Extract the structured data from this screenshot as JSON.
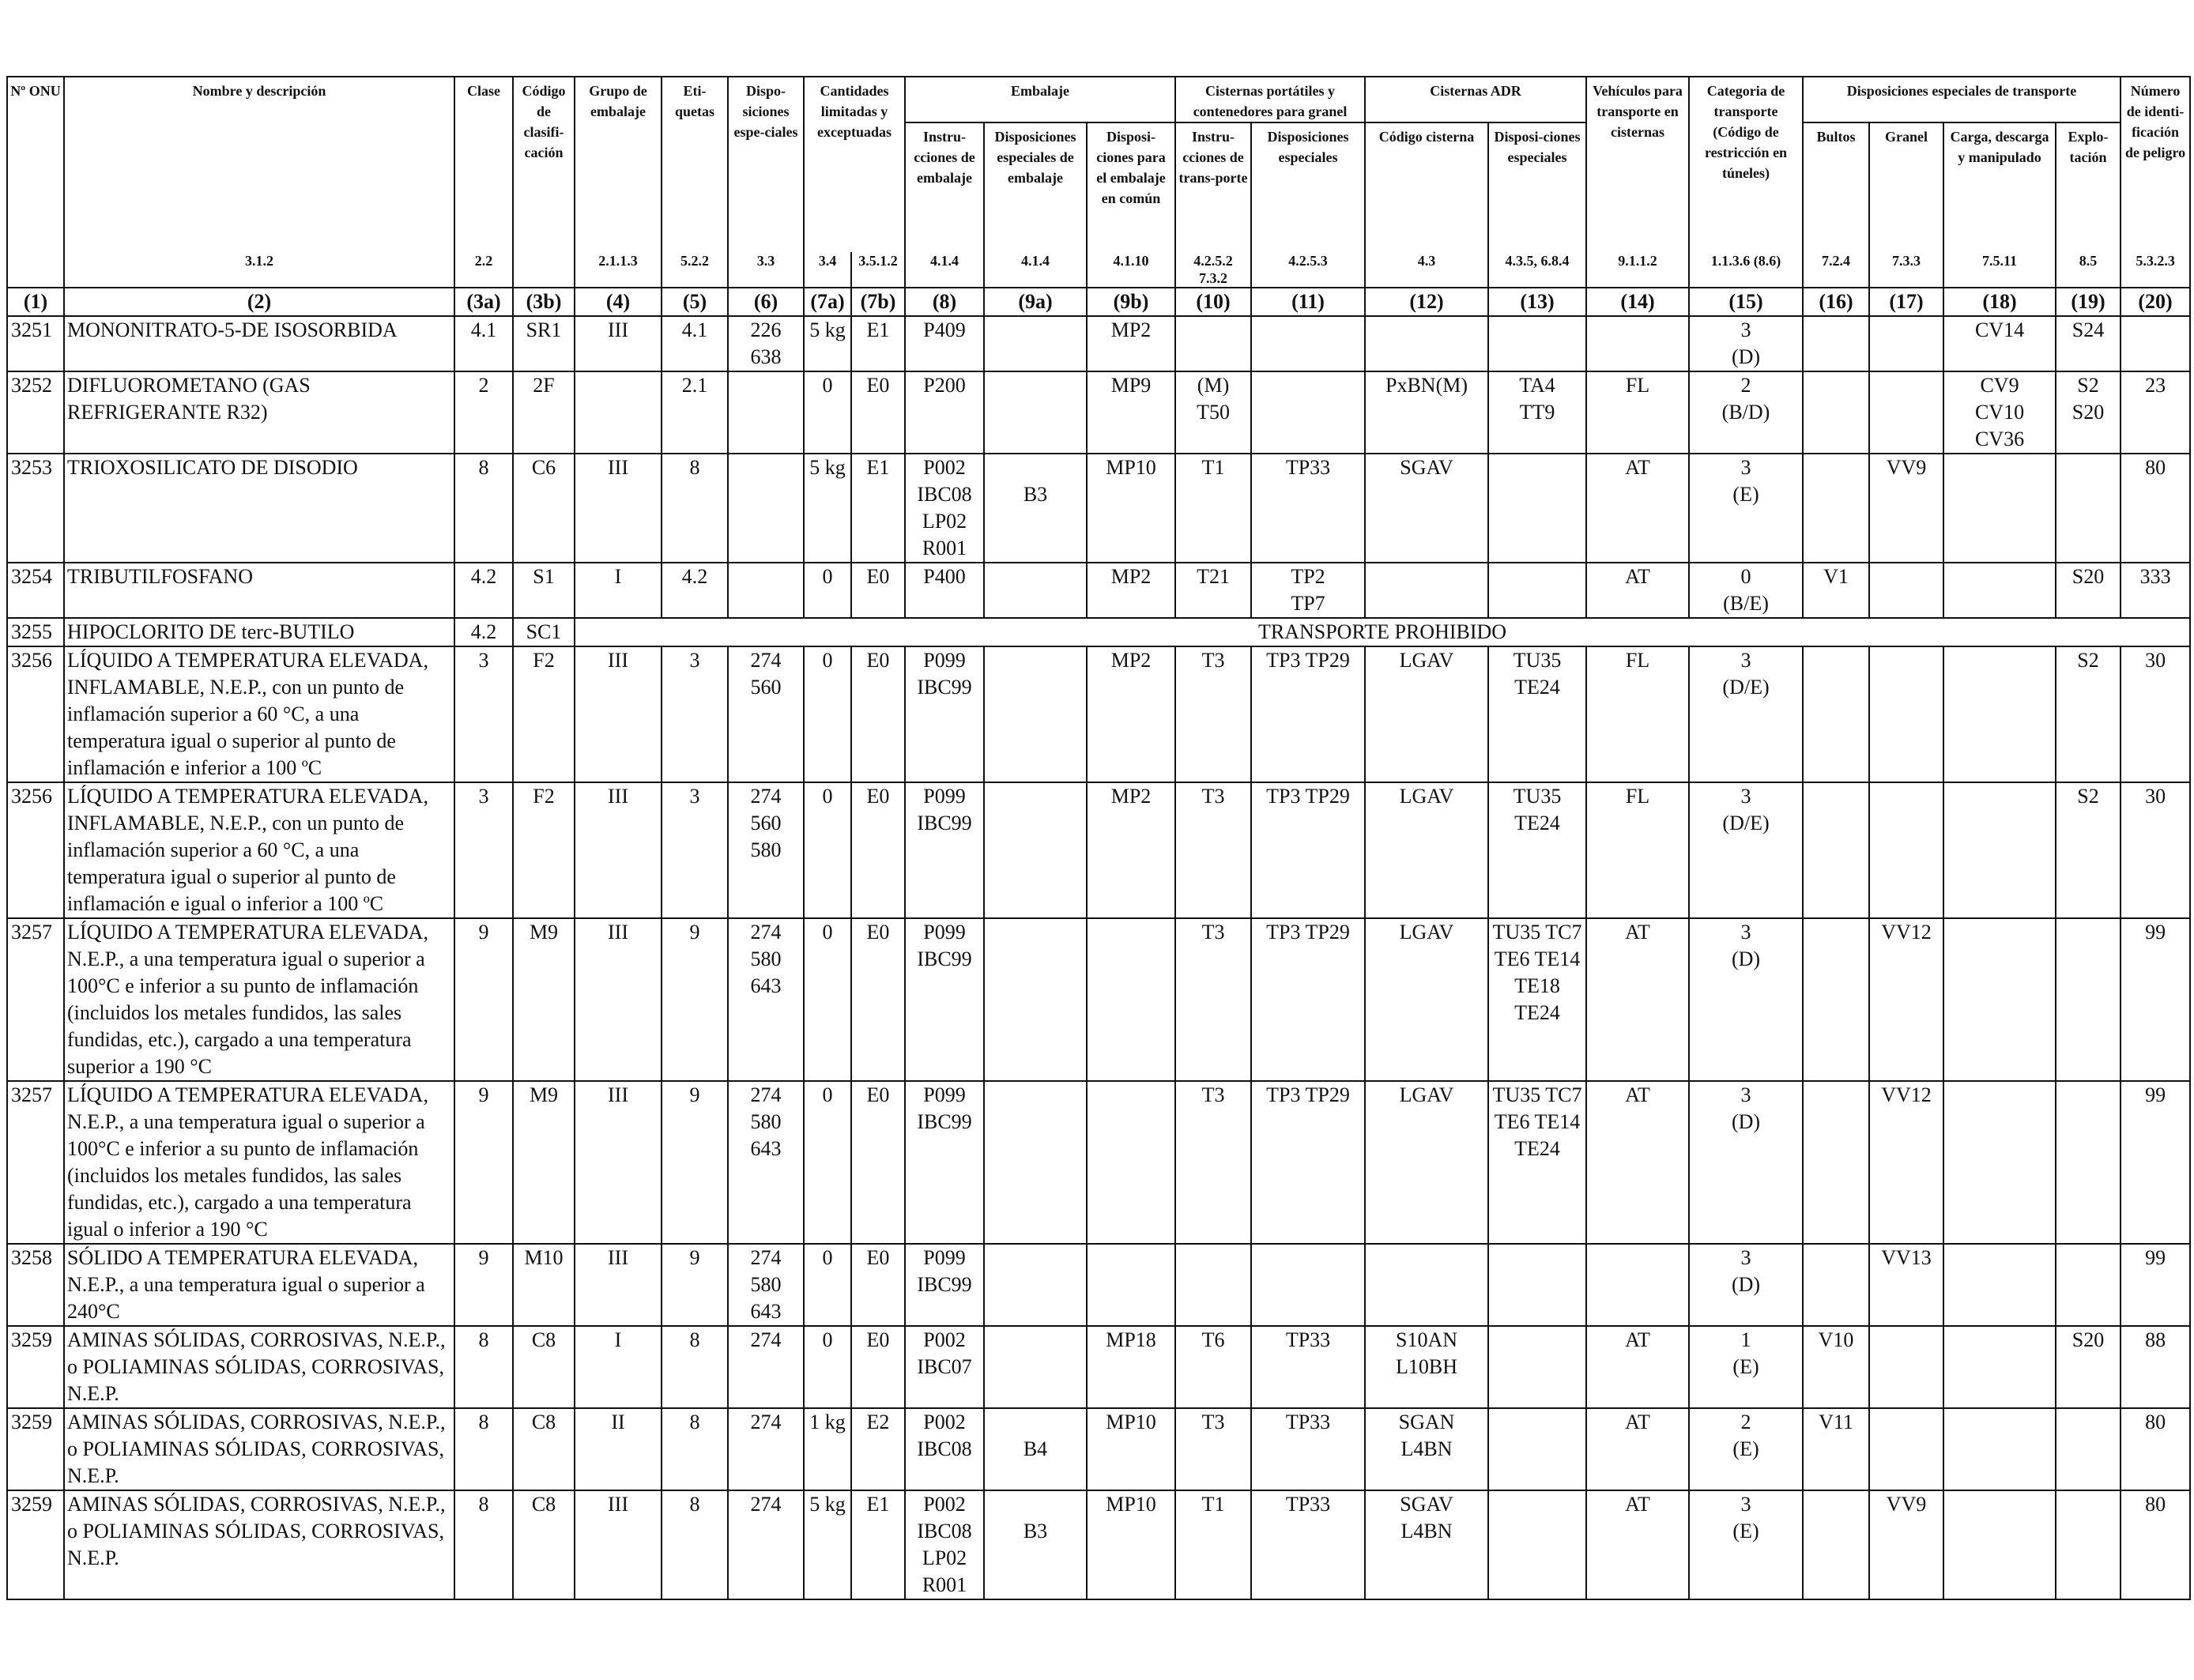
{
  "headers": {
    "onu": "Nº ONU",
    "nombre": "Nombre y descripción",
    "clase": "Clase",
    "codigo_clasificacion": "Código de clasifi-cación",
    "grupo_embalaje": "Grupo de embalaje",
    "etiquetas": "Eti-quetas",
    "disposiciones_especiales": "Dispo-siciones espe-ciales",
    "cantidades": "Cantidades limitadas y exceptuadas",
    "embalaje": "Embalaje",
    "instrucciones_embalaje": "Instru-cciones de embalaje",
    "disp_especiales_embalaje": "Disposiciones especiales de embalaje",
    "disp_embalaje_comun": "Disposi-ciones para el embalaje en común",
    "cisternas_portatiles": "Cisternas portátiles y contenedores para granel",
    "instrucciones_transporte": "Instru-cciones de trans-porte",
    "disp_especiales_cisternas": "Disposiciones especiales",
    "cisternas_adr": "Cisternas ADR",
    "codigo_cisterna": "Código cisterna",
    "disp_especiales_adr": "Disposi-ciones especiales",
    "vehiculos": "Vehículos para transporte en cisternas",
    "categoria": "Categoria de transporte (Código de restricción en túneles)",
    "disp_transporte": "Disposiciones especiales de transporte",
    "bultos": "Bultos",
    "granel": "Granel",
    "carga": "Carga, descarga y manipulado",
    "explotacion": "Explo-tación",
    "numero_peligro": "Número de identi-ficación de peligro"
  },
  "refs": [
    "",
    "3.1.2",
    "2.2",
    "",
    "2.1.1.3",
    "5.2.2",
    "3.3",
    "3.4",
    "3.5.1.2",
    "4.1.4",
    "4.1.4",
    "4.1.10",
    "4.2.5.2 7.3.2",
    "4.2.5.3",
    "4.3",
    "4.3.5, 6.8.4",
    "9.1.1.2",
    "1.1.3.6 (8.6)",
    "7.2.4",
    "7.3.3",
    "7.5.11",
    "8.5",
    "5.3.2.3"
  ],
  "colnums": [
    "(1)",
    "(2)",
    "(3a)",
    "(3b)",
    "(4)",
    "(5)",
    "(6)",
    "(7a)",
    "(7b)",
    "(8)",
    "(9a)",
    "(9b)",
    "(10)",
    "(11)",
    "(12)",
    "(13)",
    "(14)",
    "(15)",
    "(16)",
    "(17)",
    "(18)",
    "(19)",
    "(20)"
  ],
  "rows": [
    {
      "onu": "3251",
      "nombre": "MONONITRATO-5-DE ISOSORBIDA",
      "clase": "4.1",
      "codigo": "SR1",
      "grupo": "III",
      "etiquetas": "4.1",
      "disp": "226\n638",
      "c7a": "5 kg",
      "c7b": "E1",
      "instr": "P409",
      "disp9a": "",
      "disp9b": "MP2",
      "instr10": "",
      "disp11": "",
      "cod12": "",
      "disp13": "",
      "veh": "",
      "cat": "3\n(D)",
      "bultos": "",
      "granel": "",
      "carga": "CV14",
      "explo": "S24",
      "peligro": ""
    },
    {
      "onu": "3252",
      "nombre": "DIFLUOROMETANO (GAS REFRIGERANTE R32)",
      "clase": "2",
      "codigo": "2F",
      "grupo": "",
      "etiquetas": "2.1",
      "disp": "",
      "c7a": "0",
      "c7b": "E0",
      "instr": "P200",
      "disp9a": "",
      "disp9b": "MP9",
      "instr10": "(M)\nT50",
      "disp11": "",
      "cod12": "PxBN(M)",
      "disp13": "TA4\nTT9",
      "veh": "FL",
      "cat": "2\n(B/D)",
      "bultos": "",
      "granel": "",
      "carga": "CV9\nCV10\nCV36",
      "explo": "S2\nS20",
      "peligro": "23"
    },
    {
      "onu": "3253",
      "nombre": "TRIOXOSILICATO DE DISODIO",
      "clase": "8",
      "codigo": "C6",
      "grupo": "III",
      "etiquetas": "8",
      "disp": "",
      "c7a": "5 kg",
      "c7b": "E1",
      "instr": "P002\nIBC08\nLP02\nR001",
      "disp9a": "\nB3",
      "disp9b": "MP10",
      "instr10": "T1",
      "disp11": "TP33",
      "cod12": "SGAV",
      "disp13": "",
      "veh": "AT",
      "cat": "3\n(E)",
      "bultos": "",
      "granel": "VV9",
      "carga": "",
      "explo": "",
      "peligro": "80"
    },
    {
      "onu": "3254",
      "nombre": "TRIBUTILFOSFANO",
      "clase": "4.2",
      "codigo": "S1",
      "grupo": "I",
      "etiquetas": "4.2",
      "disp": "",
      "c7a": "0",
      "c7b": "E0",
      "instr": "P400",
      "disp9a": "",
      "disp9b": "MP2",
      "instr10": "T21",
      "disp11": "TP2\nTP7",
      "cod12": "",
      "disp13": "",
      "veh": "AT",
      "cat": "0\n(B/E)",
      "bultos": "V1",
      "granel": "",
      "carga": "",
      "explo": "S20",
      "peligro": "333"
    },
    {
      "onu": "3255",
      "nombre": "HIPOCLORITO DE terc-BUTILO",
      "clase": "4.2",
      "codigo": "SC1",
      "prohibido": "TRANSPORTE PROHIBIDO"
    },
    {
      "onu": "3256",
      "nombre": "LÍQUIDO A TEMPERATURA ELEVADA, INFLAMABLE, N.E.P., con un punto de inflamación superior a 60 °C, a una temperatura igual o superior al punto de inflamación e inferior a 100 ºC",
      "clase": "3",
      "codigo": "F2",
      "grupo": "III",
      "etiquetas": "3",
      "disp": "274\n560",
      "c7a": "0",
      "c7b": "E0",
      "instr": "P099\nIBC99",
      "disp9a": "",
      "disp9b": "MP2",
      "instr10": "T3",
      "disp11": "TP3 TP29",
      "cod12": "LGAV",
      "disp13": "TU35\nTE24",
      "veh": "FL",
      "cat": "3\n(D/E)",
      "bultos": "",
      "granel": "",
      "carga": "",
      "explo": "S2",
      "peligro": "30"
    },
    {
      "onu": "3256",
      "nombre": "LÍQUIDO A TEMPERATURA ELEVADA, INFLAMABLE, N.E.P., con un punto de inflamación superior a 60 °C, a una temperatura igual o superior al punto de inflamación e igual o inferior a 100 ºC",
      "clase": "3",
      "codigo": "F2",
      "grupo": "III",
      "etiquetas": "3",
      "disp": "274\n560\n580",
      "c7a": "0",
      "c7b": "E0",
      "instr": "P099\nIBC99",
      "disp9a": "",
      "disp9b": "MP2",
      "instr10": "T3",
      "disp11": "TP3 TP29",
      "cod12": "LGAV",
      "disp13": "TU35\nTE24",
      "veh": "FL",
      "cat": "3\n(D/E)",
      "bultos": "",
      "granel": "",
      "carga": "",
      "explo": "S2",
      "peligro": "30"
    },
    {
      "onu": "3257",
      "nombre": "LÍQUIDO A TEMPERATURA ELEVADA, N.E.P., a una temperatura igual o superior a 100°C e inferior a su punto de inflamación (incluidos los metales fundidos, las sales fundidas, etc.), cargado a una temperatura superior a 190 °C",
      "clase": "9",
      "codigo": "M9",
      "grupo": "III",
      "etiquetas": "9",
      "disp": "274\n580\n643",
      "c7a": "0",
      "c7b": "E0",
      "instr": "P099\nIBC99",
      "disp9a": "",
      "disp9b": "",
      "instr10": "T3",
      "disp11": "TP3 TP29",
      "cod12": "LGAV",
      "disp13": "TU35 TC7\nTE6 TE14\nTE18\nTE24",
      "veh": "AT",
      "cat": "3\n(D)",
      "bultos": "",
      "granel": "VV12",
      "carga": "",
      "explo": "",
      "peligro": "99"
    },
    {
      "onu": "3257",
      "nombre": "LÍQUIDO A TEMPERATURA ELEVADA, N.E.P., a una temperatura igual o superior a 100°C e inferior a su punto de inflamación (incluidos los metales fundidos, las sales fundidas, etc.), cargado a una temperatura igual o inferior a 190 °C",
      "clase": "9",
      "codigo": "M9",
      "grupo": "III",
      "etiquetas": "9",
      "disp": "274\n580\n643",
      "c7a": "0",
      "c7b": "E0",
      "instr": "P099\nIBC99",
      "disp9a": "",
      "disp9b": "",
      "instr10": "T3",
      "disp11": "TP3 TP29",
      "cod12": "LGAV",
      "disp13": "TU35 TC7\nTE6 TE14\nTE24",
      "veh": "AT",
      "cat": "3\n(D)",
      "bultos": "",
      "granel": "VV12",
      "carga": "",
      "explo": "",
      "peligro": "99"
    },
    {
      "onu": "3258",
      "nombre": "SÓLIDO A TEMPERATURA ELEVADA, N.E.P., a una temperatura igual o superior a 240°C",
      "clase": "9",
      "codigo": "M10",
      "grupo": "III",
      "etiquetas": "9",
      "disp": "274\n580\n643",
      "c7a": "0",
      "c7b": "E0",
      "instr": "P099\nIBC99",
      "disp9a": "",
      "disp9b": "",
      "instr10": "",
      "disp11": "",
      "cod12": "",
      "disp13": "",
      "veh": "",
      "cat": "3\n(D)",
      "bultos": "",
      "granel": "VV13",
      "carga": "",
      "explo": "",
      "peligro": "99"
    },
    {
      "onu": "3259",
      "nombre": "AMINAS SÓLIDAS, CORROSIVAS, N.E.P., o POLIAMINAS SÓLIDAS, CORROSIVAS, N.E.P.",
      "clase": "8",
      "codigo": "C8",
      "grupo": "I",
      "etiquetas": "8",
      "disp": "274",
      "c7a": "0",
      "c7b": "E0",
      "instr": "P002\nIBC07",
      "disp9a": "",
      "disp9b": "MP18",
      "instr10": "T6",
      "disp11": "TP33",
      "cod12": "S10AN\nL10BH",
      "disp13": "",
      "veh": "AT",
      "cat": "1\n(E)",
      "bultos": "V10",
      "granel": "",
      "carga": "",
      "explo": "S20",
      "peligro": "88"
    },
    {
      "onu": "3259",
      "nombre": "AMINAS SÓLIDAS, CORROSIVAS, N.E.P., o POLIAMINAS SÓLIDAS, CORROSIVAS, N.E.P.",
      "clase": "8",
      "codigo": "C8",
      "grupo": "II",
      "etiquetas": "8",
      "disp": "274",
      "c7a": "1 kg",
      "c7b": "E2",
      "instr": "P002\nIBC08",
      "disp9a": "\nB4",
      "disp9b": "MP10",
      "instr10": "T3",
      "disp11": "TP33",
      "cod12": "SGAN\nL4BN",
      "disp13": "",
      "veh": "AT",
      "cat": "2\n(E)",
      "bultos": "V11",
      "granel": "",
      "carga": "",
      "explo": "",
      "peligro": "80"
    },
    {
      "onu": "3259",
      "nombre": "AMINAS SÓLIDAS, CORROSIVAS, N.E.P., o POLIAMINAS SÓLIDAS, CORROSIVAS, N.E.P.",
      "clase": "8",
      "codigo": "C8",
      "grupo": "III",
      "etiquetas": "8",
      "disp": "274",
      "c7a": "5 kg",
      "c7b": "E1",
      "instr": "P002\nIBC08\nLP02\nR001",
      "disp9a": "\nB3",
      "disp9b": "MP10",
      "instr10": "T1",
      "disp11": "TP33",
      "cod12": "SGAV\nL4BN",
      "disp13": "",
      "veh": "AT",
      "cat": "3\n(E)",
      "bultos": "",
      "granel": "VV9",
      "carga": "",
      "explo": "",
      "peligro": "80"
    }
  ]
}
